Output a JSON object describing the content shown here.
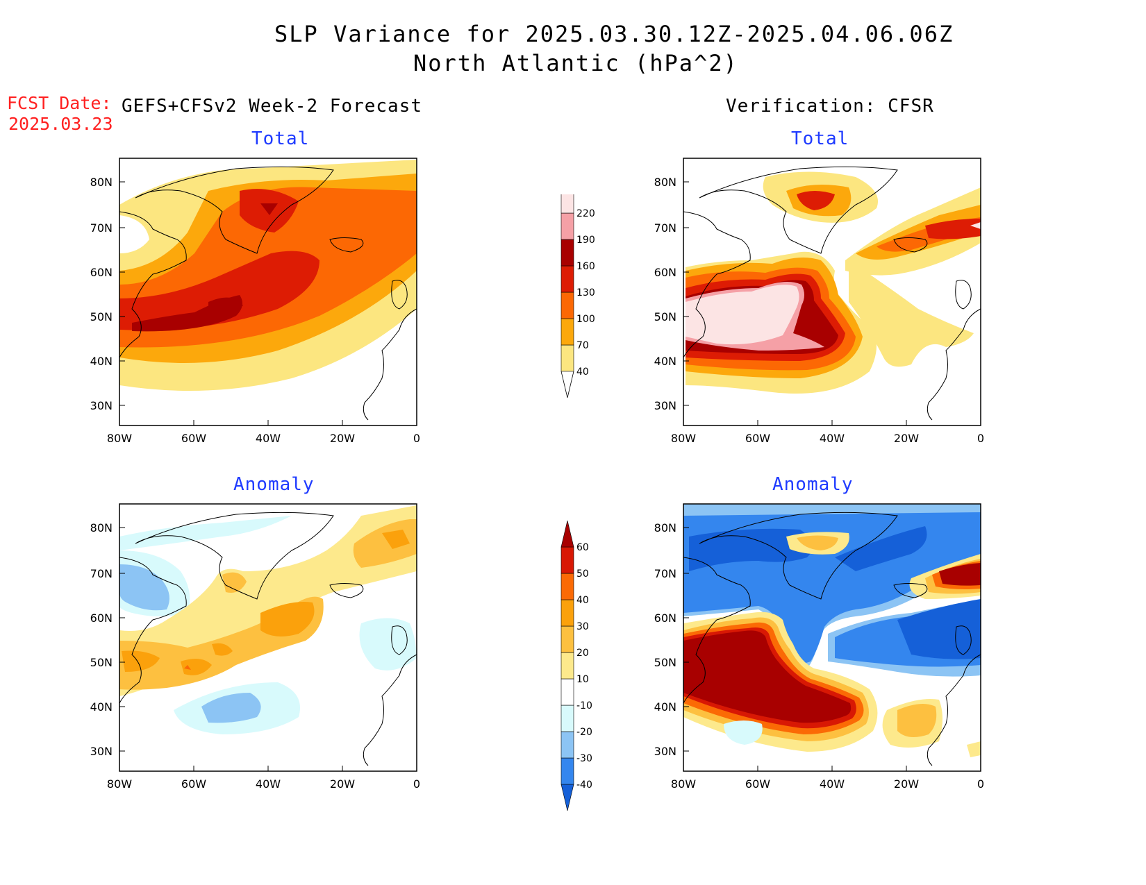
{
  "title": {
    "line1": "SLP Variance for 2025.03.30.12Z-2025.04.06.06Z",
    "line2": "North Atlantic (hPa^2)"
  },
  "fcst_date": {
    "label": "FCST Date:",
    "value": "2025.03.23"
  },
  "columns": {
    "left": "GEFS+CFSv2 Week-2 Forecast",
    "right": "Verification: CFSR"
  },
  "panels": {
    "top_left": "Total",
    "top_right": "Total",
    "bottom_left": "Anomaly",
    "bottom_right": "Anomaly"
  },
  "axes": {
    "lat_labels": [
      "80N",
      "70N",
      "60N",
      "50N",
      "40N",
      "30N"
    ],
    "lon_labels": [
      "80W",
      "60W",
      "40W",
      "20W",
      "0"
    ]
  },
  "legends": {
    "total": {
      "levels": [
        "40",
        "70",
        "100",
        "130",
        "160",
        "190",
        "220"
      ],
      "colors": [
        "#fce680",
        "#fca80c",
        "#fc6804",
        "#dd1c04",
        "#a80000",
        "#f5a0a6",
        "#fce4e4"
      ]
    },
    "anomaly": {
      "levels": [
        "-40",
        "-30",
        "-20",
        "-10",
        "10",
        "20",
        "30",
        "40",
        "50",
        "60"
      ],
      "colors": [
        "#1560d8",
        "#3486ee",
        "#8cc4f4",
        "#d8fafc",
        "#ffffff",
        "#fde98c",
        "#fdc040",
        "#fba10c",
        "#fb6a05",
        "#d81804",
        "#a80000"
      ]
    }
  },
  "colors": {
    "title_blue": "#1f3bff",
    "fcst_red": "#ff2020"
  }
}
